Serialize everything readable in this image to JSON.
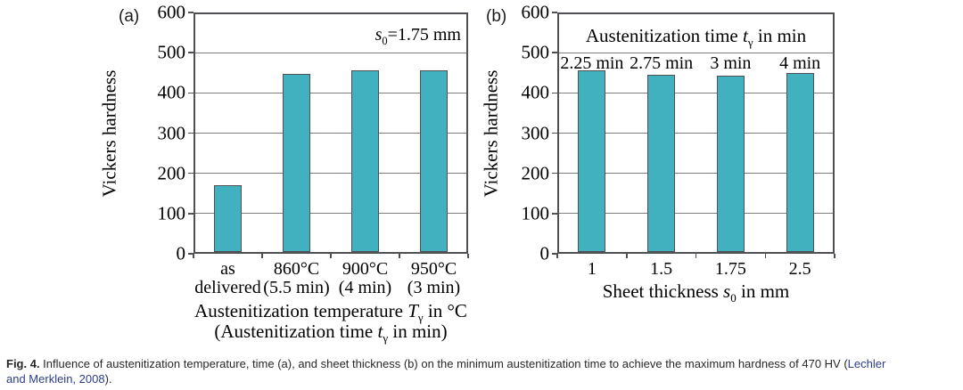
{
  "figure": {
    "panel_a_tag": "(a)",
    "panel_b_tag": "(b)"
  },
  "colors": {
    "bar_fill": "#41b1c0",
    "bar_border": "#4f5054",
    "gridline": "#7f7f7f",
    "axis": "#4f5054",
    "link": "#2c3c8e",
    "caption_text": "#26282a"
  },
  "caption": {
    "label": "Fig. 4.",
    "line1": " Influence of austenitization temperature, time (a), and sheet thickness (b) on the minimum austenitization time to achieve the maximum hardness of 470 HV (",
    "link_line1": "Lechler",
    "link_line2": "and Merklein, 2008",
    "line2_tail": ")."
  },
  "chart_data": [
    {
      "type": "bar",
      "panel": "a",
      "title": "",
      "ylabel": "Vickers hardness",
      "xlabel": "Austenitization temperature Tγ in °C (Austenitization time tγ in min)",
      "xlabel_rich_lines": [
        [
          {
            "t": "Austenitization temperature "
          },
          {
            "i": "T"
          },
          {
            "sub": "γ"
          },
          {
            "t": " in °C"
          }
        ],
        [
          {
            "t": "(Austenitization time "
          },
          {
            "i": "t"
          },
          {
            "sub": "γ"
          },
          {
            "t": " in min)"
          }
        ]
      ],
      "annotation": "s0=1.75 mm",
      "annotation_rich": [
        {
          "i": "s"
        },
        {
          "sub": "0"
        },
        {
          "t": "=1.75 mm"
        }
      ],
      "categories": [
        "as\ndelivered",
        "860°C\n(5.5 min)",
        "900°C\n(4 min)",
        "950°C\n(3 min)"
      ],
      "values": [
        170,
        448,
        455,
        455
      ],
      "ylim": [
        0,
        600
      ],
      "ytick_step": 100,
      "grid": true,
      "legend_position": "none"
    },
    {
      "type": "bar",
      "panel": "b",
      "title": "",
      "ylabel": "Vickers hardness",
      "xlabel": "Sheet thickness s0 in mm",
      "xlabel_rich_lines": [
        [
          {
            "t": "Sheet thickness "
          },
          {
            "i": "s"
          },
          {
            "sub": "0"
          },
          {
            "t": " in mm"
          }
        ]
      ],
      "inner_title": "Austenitization time tγ in min",
      "inner_title_rich": [
        {
          "t": "Austenitization time "
        },
        {
          "i": "t"
        },
        {
          "sub": "γ"
        },
        {
          "t": " in min"
        }
      ],
      "categories": [
        "1",
        "1.5",
        "1.75",
        "2.5"
      ],
      "values": [
        455,
        445,
        443,
        450
      ],
      "bar_labels": [
        "2.25 min",
        "2.75 min",
        "3 min",
        "4 min"
      ],
      "ylim": [
        0,
        600
      ],
      "ytick_step": 100,
      "grid": true,
      "legend_position": "none"
    }
  ]
}
